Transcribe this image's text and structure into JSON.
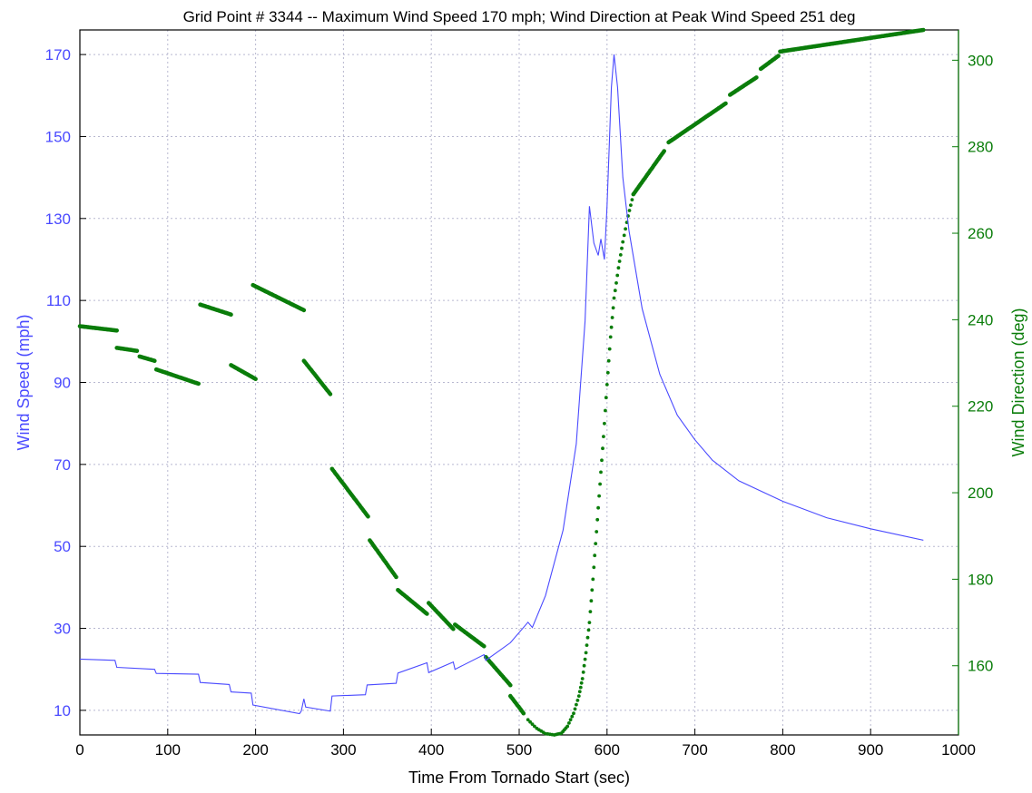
{
  "chart_data": {
    "type": "line",
    "title": "Grid Point # 3344 -- Maximum Wind Speed 170 mph; Wind Direction at Peak Wind Speed 251 deg",
    "xlabel": "Time From Tornado Start (sec)",
    "ylabel_left": "Wind Speed (mph)",
    "ylabel_right": "Wind Direction (deg)",
    "xlim": [
      0,
      1000
    ],
    "ylim_left": [
      4,
      176
    ],
    "ylim_right": [
      144,
      307
    ],
    "x_ticks": [
      0,
      100,
      200,
      300,
      400,
      500,
      600,
      700,
      800,
      900,
      1000
    ],
    "y_left_ticks": [
      10,
      30,
      50,
      70,
      90,
      110,
      130,
      150,
      170
    ],
    "y_right_ticks": [
      160,
      180,
      200,
      220,
      240,
      260,
      280,
      300
    ],
    "grid": true,
    "colors": {
      "speed": "#4a4aff",
      "direction": "#0a7d0a",
      "grid": "#b8b8d0",
      "axis": "#000000"
    },
    "series": [
      {
        "name": "Wind Speed (mph)",
        "axis": "left",
        "style": "line",
        "x": [
          0,
          40,
          42,
          85,
          87,
          135,
          137,
          170,
          172,
          195,
          197,
          250,
          252,
          255,
          257,
          285,
          287,
          325,
          327,
          360,
          362,
          395,
          397,
          425,
          427,
          460,
          462,
          490,
          510,
          515,
          530,
          550,
          565,
          575,
          580,
          585,
          590,
          593,
          597,
          600,
          605,
          608,
          612,
          618,
          625,
          640,
          660,
          680,
          700,
          720,
          750,
          800,
          850,
          900,
          960
        ],
        "y": [
          22.5,
          22.2,
          20.5,
          20,
          19,
          18.8,
          16.8,
          16.3,
          14.5,
          14.2,
          11.3,
          9.2,
          9.8,
          12.8,
          10.8,
          9.8,
          13.5,
          13.8,
          16.2,
          16.6,
          19.1,
          21.6,
          19.2,
          21.8,
          20,
          23.6,
          22.2,
          26.5,
          31.5,
          30.2,
          38,
          54,
          75,
          105,
          133,
          124,
          121,
          125,
          120,
          133,
          162,
          170,
          162,
          140,
          127,
          108,
          92,
          82,
          76,
          71,
          66,
          61,
          57,
          54.3,
          51.5
        ]
      },
      {
        "name": "Wind Direction (deg)",
        "axis": "right",
        "style": "dots",
        "segments": [
          {
            "x": [
              0,
              42
            ],
            "y": [
              238.5,
              237.5
            ]
          },
          {
            "x": [
              42,
              65
            ],
            "y": [
              233.5,
              232.8
            ]
          },
          {
            "x": [
              68,
              85
            ],
            "y": [
              231.5,
              230.5
            ]
          },
          {
            "x": [
              87,
              135
            ],
            "y": [
              228.5,
              225.2
            ]
          },
          {
            "x": [
              137,
              172
            ],
            "y": [
              243.5,
              241.2
            ]
          },
          {
            "x": [
              172,
              200
            ],
            "y": [
              229.5,
              226.3
            ]
          },
          {
            "x": [
              197,
              255
            ],
            "y": [
              248,
              242.2
            ]
          },
          {
            "x": [
              255,
              285
            ],
            "y": [
              230.5,
              222.8
            ]
          },
          {
            "x": [
              287,
              328
            ],
            "y": [
              205.5,
              194.5
            ]
          },
          {
            "x": [
              330,
              360
            ],
            "y": [
              189,
              180.5
            ]
          },
          {
            "x": [
              362,
              395
            ],
            "y": [
              177.5,
              172
            ]
          },
          {
            "x": [
              397,
              425
            ],
            "y": [
              174.5,
              168.5
            ]
          },
          {
            "x": [
              427,
              460
            ],
            "y": [
              169.5,
              164.5
            ]
          },
          {
            "x": [
              462,
              490
            ],
            "y": [
              162,
              155.5
            ]
          },
          {
            "x": [
              490,
              505
            ],
            "y": [
              153,
              149
            ]
          }
        ],
        "curve": {
          "x": [
            510,
            520,
            530,
            540,
            548,
            555,
            562,
            568,
            572,
            576,
            580,
            584,
            588,
            592,
            596,
            600,
            604,
            608,
            613,
            618,
            624,
            630
          ],
          "y": [
            147.5,
            145.5,
            144.3,
            144,
            144.4,
            146,
            149,
            153,
            157,
            163,
            170,
            180,
            191,
            202,
            213,
            225,
            236,
            245,
            252,
            258,
            264,
            269
          ]
        },
        "tail": [
          {
            "x": [
              630,
              665
            ],
            "y": [
              269,
              279
            ]
          },
          {
            "x": [
              670,
              735
            ],
            "y": [
              281,
              290
            ]
          },
          {
            "x": [
              740,
              770
            ],
            "y": [
              292,
              296
            ]
          },
          {
            "x": [
              775,
              795
            ],
            "y": [
              298,
              301
            ]
          },
          {
            "x": [
              797,
              960
            ],
            "y": [
              302,
              307
            ]
          }
        ]
      }
    ]
  }
}
